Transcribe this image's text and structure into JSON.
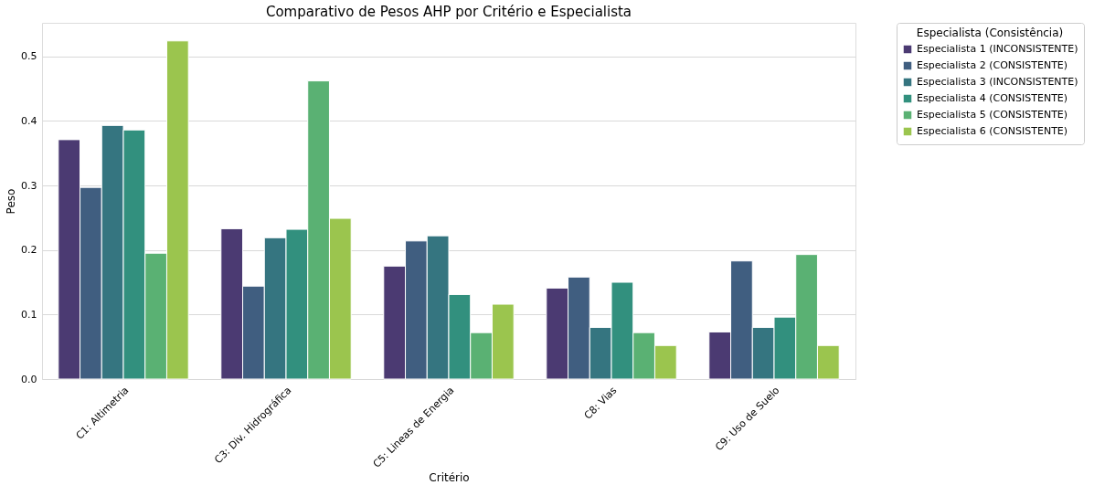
{
  "chart_data": {
    "type": "bar",
    "title": "Comparativo de Pesos AHP por Critério e Especialista",
    "xlabel": "Critério",
    "ylabel": "Peso",
    "legend_title": "Especialista (Consistência)",
    "categories": [
      "C1: Altimetria",
      "C3: Div. Hidrográfica",
      "C5: Lineas de Energia",
      "C8: Vias",
      "C9: Uso de Suelo"
    ],
    "series": [
      {
        "name": "Especialista 1 (INCONSISTENTE)",
        "color": "#4b3a72",
        "values": [
          0.371,
          0.233,
          0.175,
          0.141,
          0.073
        ]
      },
      {
        "name": "Especialista 2 (CONSISTENTE)",
        "color": "#405e80",
        "values": [
          0.297,
          0.144,
          0.214,
          0.158,
          0.183
        ]
      },
      {
        "name": "Especialista 3 (INCONSISTENTE)",
        "color": "#357580",
        "values": [
          0.393,
          0.219,
          0.222,
          0.08,
          0.08
        ]
      },
      {
        "name": "Especialista 4 (CONSISTENTE)",
        "color": "#32907e",
        "values": [
          0.386,
          0.232,
          0.131,
          0.15,
          0.096
        ]
      },
      {
        "name": "Especialista 5 (CONSISTENTE)",
        "color": "#5ab173",
        "values": [
          0.195,
          0.462,
          0.072,
          0.072,
          0.193
        ]
      },
      {
        "name": "Especialista 6 (CONSISTENTE)",
        "color": "#9bc54e",
        "values": [
          0.524,
          0.249,
          0.116,
          0.052,
          0.052
        ]
      }
    ],
    "ylim": [
      0,
      0.552
    ],
    "yticks": [
      {
        "value": 0,
        "label": "0.0"
      },
      {
        "value": 0.1,
        "label": "0.1"
      },
      {
        "value": 0.2,
        "label": "0.2"
      },
      {
        "value": 0.3,
        "label": "0.3"
      },
      {
        "value": 0.4,
        "label": "0.4"
      },
      {
        "value": 0.5,
        "label": "0.5"
      }
    ],
    "grid": "y",
    "legend": "top right"
  }
}
